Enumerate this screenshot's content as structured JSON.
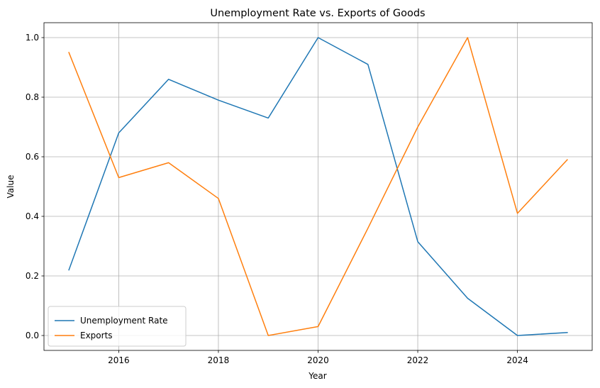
{
  "chart_data": {
    "type": "line",
    "title": "Unemployment Rate vs. Exports of Goods",
    "xlabel": "Year",
    "ylabel": "Value",
    "x": [
      2015,
      2016,
      2017,
      2018,
      2019,
      2020,
      2021,
      2022,
      2023,
      2024,
      2025
    ],
    "xlim": [
      2014.5,
      2025.5
    ],
    "ylim": [
      -0.05,
      1.05
    ],
    "xticks": [
      2016,
      2018,
      2020,
      2022,
      2024
    ],
    "xtick_labels": [
      "2016",
      "2018",
      "2020",
      "2022",
      "2024"
    ],
    "yticks": [
      0.0,
      0.2,
      0.4,
      0.6,
      0.8,
      1.0
    ],
    "ytick_labels": [
      "0.0",
      "0.2",
      "0.4",
      "0.6",
      "0.8",
      "1.0"
    ],
    "grid": true,
    "legend_position": "lower-left",
    "series": [
      {
        "name": "Unemployment Rate",
        "color": "#1f77b4",
        "values": [
          0.22,
          0.68,
          0.86,
          0.79,
          0.73,
          1.0,
          0.91,
          0.315,
          0.125,
          0.0,
          0.01
        ]
      },
      {
        "name": "Exports",
        "color": "#ff7f0e",
        "values": [
          0.95,
          0.53,
          0.58,
          0.46,
          0.0,
          0.03,
          0.36,
          0.7,
          1.0,
          0.41,
          0.59
        ]
      }
    ]
  }
}
